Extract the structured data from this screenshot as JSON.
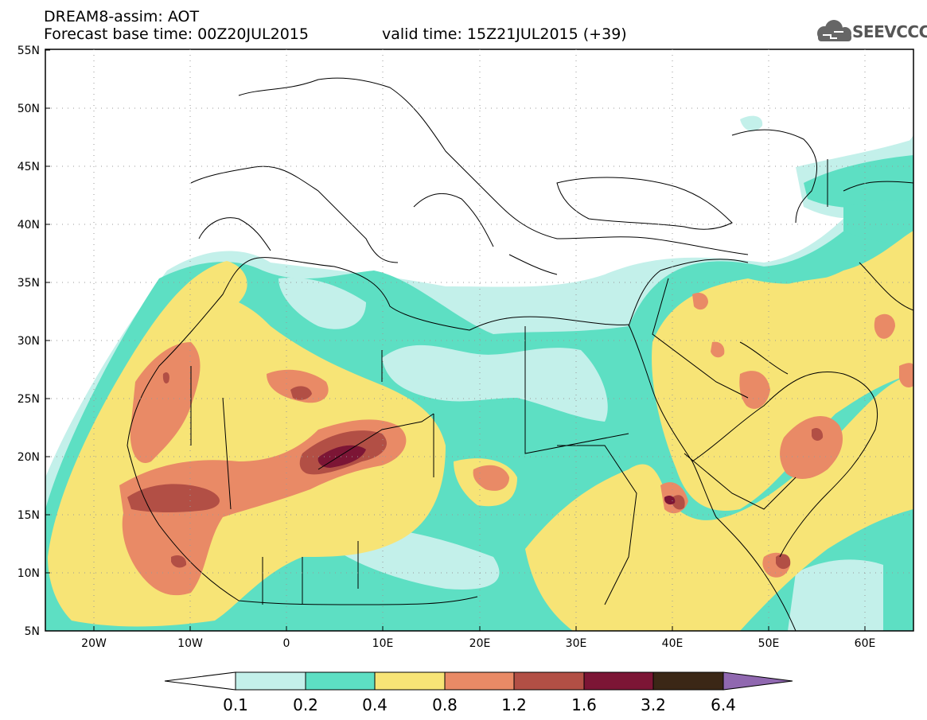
{
  "header": {
    "title": "DREAM8-assim: AOT",
    "base_time": "Forecast base time: 00Z20JUL2015",
    "valid_time": "valid time: 15Z21JUL2015 (+39)"
  },
  "logo": {
    "text": "SEEVCCC",
    "icon": "cloud-icon"
  },
  "axes": {
    "lat_labels": [
      "55N",
      "50N",
      "45N",
      "40N",
      "35N",
      "30N",
      "25N",
      "20N",
      "15N",
      "10N",
      "5N"
    ],
    "lon_labels": [
      "20W",
      "10W",
      "0",
      "10E",
      "20E",
      "30E",
      "40E",
      "50E",
      "60E"
    ]
  },
  "colorbar": {
    "levels": [
      "0.1",
      "0.2",
      "0.4",
      "0.8",
      "1.2",
      "1.6",
      "3.2",
      "6.4"
    ],
    "colors": [
      "#ffffff",
      "#c3f0ea",
      "#5ddfc3",
      "#f7e476",
      "#e98a66",
      "#b24f45",
      "#7c1535",
      "#3b2716",
      "#9068b0"
    ]
  },
  "palette": {
    "c01": "#c3f0ea",
    "c02": "#5ddfc3",
    "c04": "#f7e476",
    "c08": "#e98a66",
    "c12": "#b24f45",
    "c16": "#7c1535",
    "c32": "#3b2716"
  }
}
